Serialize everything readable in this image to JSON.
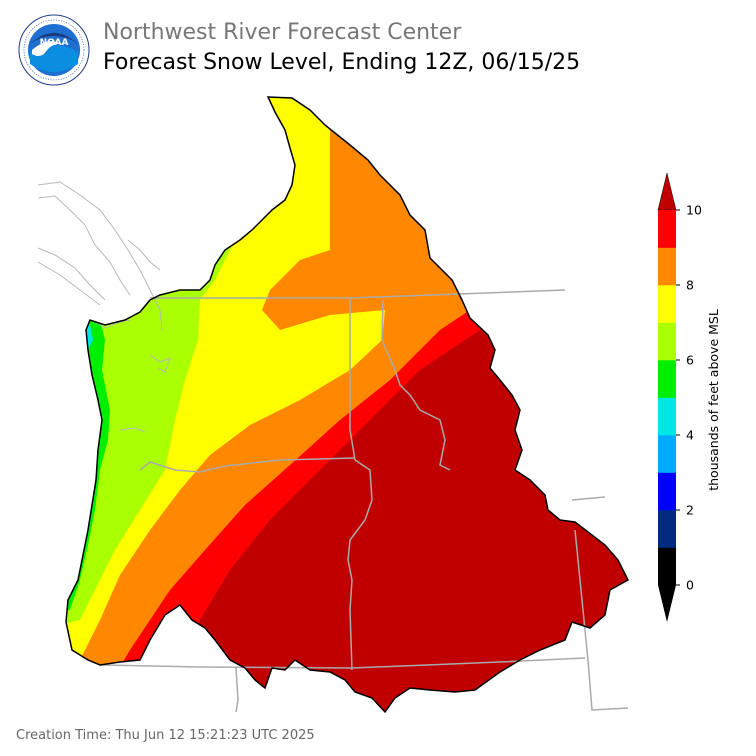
{
  "header": {
    "agency": "Northwest River Forecast Center",
    "product": "Forecast Snow Level, Ending 12Z, 06/15/25"
  },
  "logo": {
    "text": "NOAA",
    "ring_text": "NATIONAL OCEANIC AND ATMOSPHERIC ADMINISTRATION · U.S. DEPARTMENT OF COMMERCE",
    "icon": "noaa-logo-icon"
  },
  "legend": {
    "label": "thousands of feet above MSL",
    "ticks": [
      "0",
      "2",
      "4",
      "6",
      "8",
      "10"
    ],
    "bins": [
      {
        "range": "0-1",
        "color": "#000000"
      },
      {
        "range": "1-2",
        "color": "#002b80"
      },
      {
        "range": "2-3",
        "color": "#0000ff"
      },
      {
        "range": "3-4",
        "color": "#00aaff"
      },
      {
        "range": "4-5",
        "color": "#00e5e5"
      },
      {
        "range": "5-6",
        "color": "#00ee00"
      },
      {
        "range": "6-7",
        "color": "#aaff00"
      },
      {
        "range": "7-8",
        "color": "#ffff00"
      },
      {
        "range": "8-9",
        "color": "#ff8800"
      },
      {
        "range": "9-10",
        "color": "#ff0000"
      }
    ],
    "over_color": "#c00000",
    "under_color": "#000000"
  },
  "map": {
    "region": "Pacific Northwest (Columbia River Basin and coastal drainages)",
    "zone_colors": {
      "green": "#00ee00",
      "light_green": "#aaff00",
      "yellow": "#ffff00",
      "orange": "#ff8800",
      "red": "#ff0000",
      "dark_red": "#c00000",
      "cyan": "#00e5e5"
    },
    "border_color": "#aaaaaa",
    "outline_color": "#000000"
  },
  "footer": {
    "creation_time": "Creation Time: Thu Jun 12 15:21:23 UTC 2025"
  }
}
